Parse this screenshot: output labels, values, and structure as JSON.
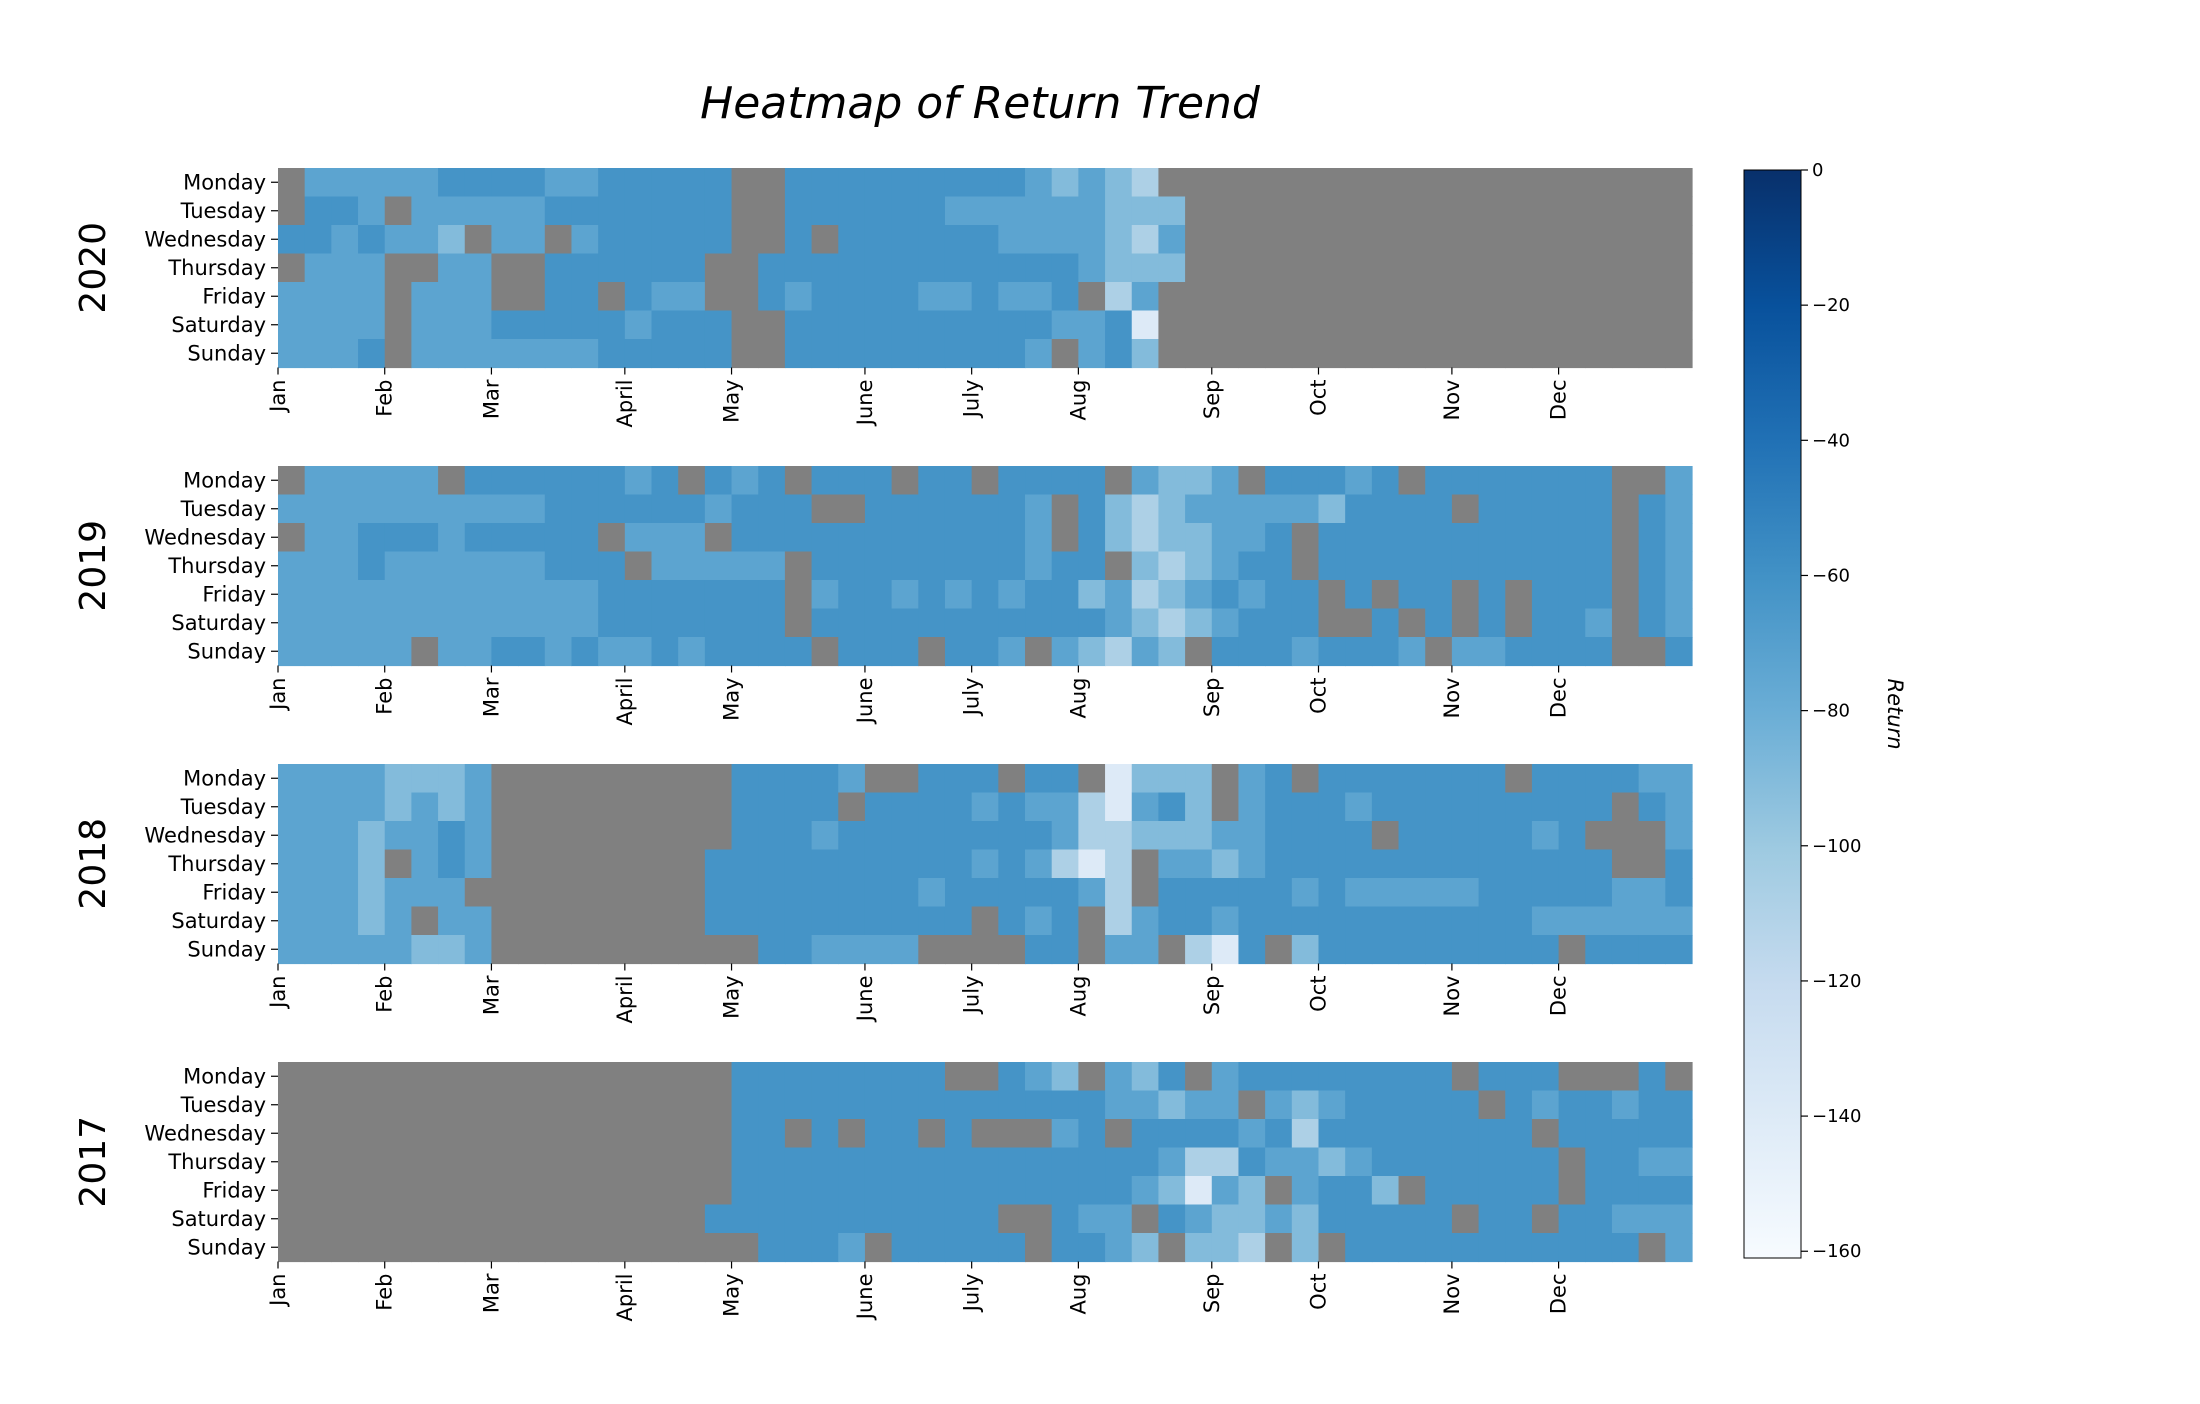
{
  "chart_data": {
    "type": "heatmap",
    "title": "Heatmap of Return Trend",
    "colorbar_label": "Return",
    "colorbar_ticks": [
      "0",
      "−20",
      "−40",
      "−60",
      "−80",
      "−100",
      "−120",
      "−140",
      "−160"
    ],
    "vmin": -161,
    "vmax": 0,
    "days": [
      "Monday",
      "Tuesday",
      "Wednesday",
      "Thursday",
      "Friday",
      "Saturday",
      "Sunday"
    ],
    "months": [
      "Jan",
      "Feb",
      "Mar",
      "April",
      "May",
      "June",
      "July",
      "Aug",
      "Sep",
      "Oct",
      "Nov",
      "Dec"
    ],
    "month_start_weeks": [
      0,
      4,
      8,
      13,
      17,
      22,
      26,
      30,
      35,
      39,
      44,
      48
    ],
    "weeks_per_year": 53,
    "missing_color": "#808080",
    "colormap": "Blues",
    "years": [
      {
        "year": "2020",
        "grid": [
          "N=====----==-----NN---------=+=+<NNNNNNNNNNNNNNNNNNNN",
          "N--=N=====-------NN------======+++NNNNNNNNNNNNNNNNNNN",
          "--=-==+N==N=-----NN-N------====+<=NNNNNNNNNNNNNNNNNNN",
          "N===NN==NN------NN------------=+++NNNNNNNNNNNNNNNNNNN",
          "====N===NN--N-==NN-=----==-==-N<=NNNNNNNNNNNNNNNNNNNN",
          "====N===-----=---NN----------==-!NNNNNNNNNNNNNNNNNNNN",
          "===-N=======-----NN---------=N=-+NNNNNNNNNNNNNNNNNNNN"
        ]
      },
      {
        "year": "2019",
        "grid": [
          "N=====N------=-N-=-N---N--N----N=++=N---=-N-------NN==-==",
          "==========------=---NN------=N-+<+=====+----N-----N-==-=",
          "N==---=-----N===N-----------=N-+<++==-N-----------N-=--N",
          "===-======---N=====N--------=--N+<+=--N-----------N-=-=N",
          "============-------N=--=-=-=--+=<+=-=--N-N--N-N---N-===N",
          "============-------N-----------=+<+=---NN-N-N-N--=N-===N",
          "=====N==--=-==-=----N---N--=N=+<=+N---=---=N==----NN-==N"
        ]
      },
      {
        "year": "2018",
        "grid": [
          "====+++=NNNNNNNNN----=NN---N--N!+++N=-N-------N----=====",
          "====+=+=NNNNNNNNN----N----=-==<!=-+N=---=---------N-===N",
          "===+==-=NNNNNNNNN---=--------=<<+++==----N-----=-NNN==-N",
          "===+N=-=NNNNNNNN----------=-=<!<N==+=-------------NN-N=N",
          "===+===NNNNNNNNN--------=-----=<N-----=-=====-----==-==N",
          "===+=N==NNNNNNNN----------N-=-N<=--=-----------=======N",
          "=====++=NNNNNNNNNN--====NNNN--N==N<!-N+---------N-------N"
        ]
      },
      {
        "year": "2017",
        "grid": [
          "NNNNNNNNNNNNNNNNN--------NN-=+N=+-N=--------N---NNN-N===",
          "NNNNNNNNNNNNNNNNN--------------==+==N=+=-----N-=--=--N==",
          "NNNNNNNNNNNNNNNNN--N-N--N-NNN=-N----=-<--------N-----N===",
          "NNNNNNNNNNNNNNNNN----------------=<<-==+=-------N--=====",
          "NNNNNNNNNNNNNNNNN---------------=+!=+N=--+N-----N-------N==",
          "NNNNNNNNNNNNNNNN-----------NN-==N-=++=+-----N--N--===-===",
          "NNNNNNNNNNNNNNNNNN---=N-----N--=+N++<N+N-----------N=N-==="
        ]
      }
    ],
    "value_key": {
      "-": -62,
      "=": -73,
      "+": -90,
      "<": -108,
      "!": -140,
      "N": null
    }
  }
}
